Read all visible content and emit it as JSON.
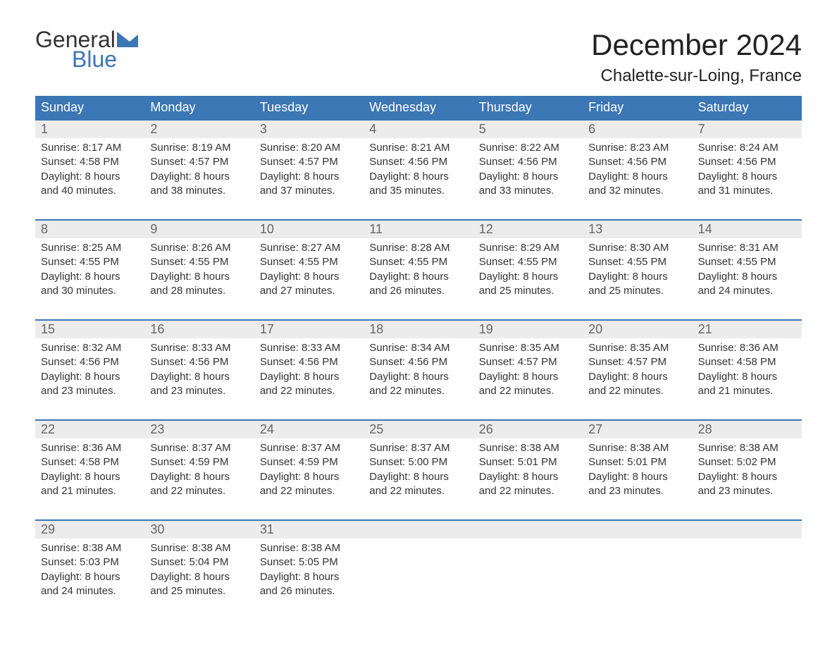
{
  "logo": {
    "line1": "General",
    "line2": "Blue",
    "mark_color": "#3b76b5"
  },
  "title": "December 2024",
  "location": "Chalette-sur-Loing, France",
  "colors": {
    "header_bg": "#3b76b5",
    "header_text": "#ffffff",
    "daynum_bg": "#ececec",
    "daynum_text": "#666666",
    "border": "#3b76b5",
    "body_text": "#333333",
    "background": "#ffffff"
  },
  "day_names": [
    "Sunday",
    "Monday",
    "Tuesday",
    "Wednesday",
    "Thursday",
    "Friday",
    "Saturday"
  ],
  "weeks": [
    [
      {
        "num": "1",
        "sunrise": "Sunrise: 8:17 AM",
        "sunset": "Sunset: 4:58 PM",
        "d1": "Daylight: 8 hours",
        "d2": "and 40 minutes."
      },
      {
        "num": "2",
        "sunrise": "Sunrise: 8:19 AM",
        "sunset": "Sunset: 4:57 PM",
        "d1": "Daylight: 8 hours",
        "d2": "and 38 minutes."
      },
      {
        "num": "3",
        "sunrise": "Sunrise: 8:20 AM",
        "sunset": "Sunset: 4:57 PM",
        "d1": "Daylight: 8 hours",
        "d2": "and 37 minutes."
      },
      {
        "num": "4",
        "sunrise": "Sunrise: 8:21 AM",
        "sunset": "Sunset: 4:56 PM",
        "d1": "Daylight: 8 hours",
        "d2": "and 35 minutes."
      },
      {
        "num": "5",
        "sunrise": "Sunrise: 8:22 AM",
        "sunset": "Sunset: 4:56 PM",
        "d1": "Daylight: 8 hours",
        "d2": "and 33 minutes."
      },
      {
        "num": "6",
        "sunrise": "Sunrise: 8:23 AM",
        "sunset": "Sunset: 4:56 PM",
        "d1": "Daylight: 8 hours",
        "d2": "and 32 minutes."
      },
      {
        "num": "7",
        "sunrise": "Sunrise: 8:24 AM",
        "sunset": "Sunset: 4:56 PM",
        "d1": "Daylight: 8 hours",
        "d2": "and 31 minutes."
      }
    ],
    [
      {
        "num": "8",
        "sunrise": "Sunrise: 8:25 AM",
        "sunset": "Sunset: 4:55 PM",
        "d1": "Daylight: 8 hours",
        "d2": "and 30 minutes."
      },
      {
        "num": "9",
        "sunrise": "Sunrise: 8:26 AM",
        "sunset": "Sunset: 4:55 PM",
        "d1": "Daylight: 8 hours",
        "d2": "and 28 minutes."
      },
      {
        "num": "10",
        "sunrise": "Sunrise: 8:27 AM",
        "sunset": "Sunset: 4:55 PM",
        "d1": "Daylight: 8 hours",
        "d2": "and 27 minutes."
      },
      {
        "num": "11",
        "sunrise": "Sunrise: 8:28 AM",
        "sunset": "Sunset: 4:55 PM",
        "d1": "Daylight: 8 hours",
        "d2": "and 26 minutes."
      },
      {
        "num": "12",
        "sunrise": "Sunrise: 8:29 AM",
        "sunset": "Sunset: 4:55 PM",
        "d1": "Daylight: 8 hours",
        "d2": "and 25 minutes."
      },
      {
        "num": "13",
        "sunrise": "Sunrise: 8:30 AM",
        "sunset": "Sunset: 4:55 PM",
        "d1": "Daylight: 8 hours",
        "d2": "and 25 minutes."
      },
      {
        "num": "14",
        "sunrise": "Sunrise: 8:31 AM",
        "sunset": "Sunset: 4:55 PM",
        "d1": "Daylight: 8 hours",
        "d2": "and 24 minutes."
      }
    ],
    [
      {
        "num": "15",
        "sunrise": "Sunrise: 8:32 AM",
        "sunset": "Sunset: 4:56 PM",
        "d1": "Daylight: 8 hours",
        "d2": "and 23 minutes."
      },
      {
        "num": "16",
        "sunrise": "Sunrise: 8:33 AM",
        "sunset": "Sunset: 4:56 PM",
        "d1": "Daylight: 8 hours",
        "d2": "and 23 minutes."
      },
      {
        "num": "17",
        "sunrise": "Sunrise: 8:33 AM",
        "sunset": "Sunset: 4:56 PM",
        "d1": "Daylight: 8 hours",
        "d2": "and 22 minutes."
      },
      {
        "num": "18",
        "sunrise": "Sunrise: 8:34 AM",
        "sunset": "Sunset: 4:56 PM",
        "d1": "Daylight: 8 hours",
        "d2": "and 22 minutes."
      },
      {
        "num": "19",
        "sunrise": "Sunrise: 8:35 AM",
        "sunset": "Sunset: 4:57 PM",
        "d1": "Daylight: 8 hours",
        "d2": "and 22 minutes."
      },
      {
        "num": "20",
        "sunrise": "Sunrise: 8:35 AM",
        "sunset": "Sunset: 4:57 PM",
        "d1": "Daylight: 8 hours",
        "d2": "and 22 minutes."
      },
      {
        "num": "21",
        "sunrise": "Sunrise: 8:36 AM",
        "sunset": "Sunset: 4:58 PM",
        "d1": "Daylight: 8 hours",
        "d2": "and 21 minutes."
      }
    ],
    [
      {
        "num": "22",
        "sunrise": "Sunrise: 8:36 AM",
        "sunset": "Sunset: 4:58 PM",
        "d1": "Daylight: 8 hours",
        "d2": "and 21 minutes."
      },
      {
        "num": "23",
        "sunrise": "Sunrise: 8:37 AM",
        "sunset": "Sunset: 4:59 PM",
        "d1": "Daylight: 8 hours",
        "d2": "and 22 minutes."
      },
      {
        "num": "24",
        "sunrise": "Sunrise: 8:37 AM",
        "sunset": "Sunset: 4:59 PM",
        "d1": "Daylight: 8 hours",
        "d2": "and 22 minutes."
      },
      {
        "num": "25",
        "sunrise": "Sunrise: 8:37 AM",
        "sunset": "Sunset: 5:00 PM",
        "d1": "Daylight: 8 hours",
        "d2": "and 22 minutes."
      },
      {
        "num": "26",
        "sunrise": "Sunrise: 8:38 AM",
        "sunset": "Sunset: 5:01 PM",
        "d1": "Daylight: 8 hours",
        "d2": "and 22 minutes."
      },
      {
        "num": "27",
        "sunrise": "Sunrise: 8:38 AM",
        "sunset": "Sunset: 5:01 PM",
        "d1": "Daylight: 8 hours",
        "d2": "and 23 minutes."
      },
      {
        "num": "28",
        "sunrise": "Sunrise: 8:38 AM",
        "sunset": "Sunset: 5:02 PM",
        "d1": "Daylight: 8 hours",
        "d2": "and 23 minutes."
      }
    ],
    [
      {
        "num": "29",
        "sunrise": "Sunrise: 8:38 AM",
        "sunset": "Sunset: 5:03 PM",
        "d1": "Daylight: 8 hours",
        "d2": "and 24 minutes."
      },
      {
        "num": "30",
        "sunrise": "Sunrise: 8:38 AM",
        "sunset": "Sunset: 5:04 PM",
        "d1": "Daylight: 8 hours",
        "d2": "and 25 minutes."
      },
      {
        "num": "31",
        "sunrise": "Sunrise: 8:38 AM",
        "sunset": "Sunset: 5:05 PM",
        "d1": "Daylight: 8 hours",
        "d2": "and 26 minutes."
      },
      null,
      null,
      null,
      null
    ]
  ]
}
